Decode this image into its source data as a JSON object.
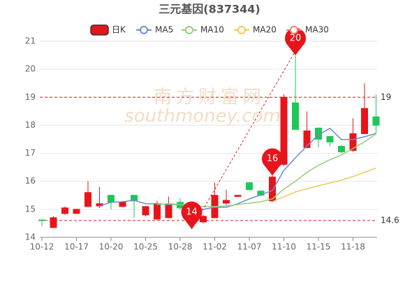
{
  "chart_data": {
    "type": "candlestick",
    "title": "三元基因(837344)",
    "watermark": [
      "南方财富网",
      "southmoney.com"
    ],
    "categories": [
      "10-12",
      null,
      null,
      "10-17",
      null,
      null,
      "10-20",
      null,
      null,
      "10-25",
      null,
      null,
      "10-28",
      null,
      null,
      "11-02",
      null,
      null,
      "11-07",
      null,
      null,
      "11-10",
      null,
      null,
      "11-15",
      null,
      null,
      "11-18",
      null,
      null
    ],
    "series": [
      {
        "name": "日K",
        "color": "#e8141b",
        "down_color": "#1ec75a",
        "open": [
          14.62,
          14.35,
          14.85,
          14.85,
          15.1,
          15.12,
          15.5,
          15.1,
          15.5,
          14.8,
          14.65,
          14.7,
          15.25,
          15.0,
          14.55,
          14.7,
          15.22,
          15.46,
          15.95,
          15.65,
          15.3,
          16.6,
          18.8,
          17.2,
          17.9,
          17.6,
          17.25,
          17.1,
          17.7,
          18.3
        ],
        "close": [
          14.6,
          14.7,
          15.05,
          15.0,
          15.6,
          15.2,
          15.25,
          15.25,
          15.3,
          15.1,
          15.2,
          15.2,
          15.05,
          14.75,
          14.75,
          15.5,
          15.32,
          15.5,
          15.7,
          15.5,
          16.15,
          19.0,
          17.85,
          17.8,
          17.5,
          17.4,
          17.05,
          17.7,
          18.6,
          18.0
        ],
        "high": [
          14.65,
          14.75,
          15.1,
          15.02,
          16.0,
          15.8,
          15.52,
          15.3,
          15.52,
          15.12,
          15.3,
          15.45,
          15.4,
          15.05,
          14.8,
          15.95,
          15.7,
          15.52,
          15.97,
          15.68,
          16.2,
          19.1,
          20.5,
          18.5,
          17.92,
          17.62,
          17.3,
          18.25,
          19.5,
          19.1
        ],
        "low": [
          14.4,
          14.33,
          14.8,
          14.85,
          15.08,
          15.05,
          15.0,
          15.08,
          14.7,
          14.75,
          14.62,
          14.68,
          14.98,
          14.3,
          14.5,
          14.68,
          15.15,
          15.45,
          15.68,
          15.48,
          15.25,
          16.55,
          17.85,
          17.18,
          17.2,
          17.25,
          17.0,
          17.05,
          17.68,
          17.7
        ]
      },
      {
        "name": "MA5",
        "color": "#6b8bd6",
        "values": [
          null,
          null,
          null,
          null,
          null,
          15.12,
          15.25,
          15.27,
          15.32,
          15.2,
          15.2,
          15.17,
          15.17,
          15.1,
          15.0,
          15.07,
          15.07,
          15.2,
          15.37,
          15.52,
          15.67,
          16.39,
          16.84,
          17.26,
          17.66,
          17.89,
          17.49,
          17.49,
          17.59,
          17.71
        ]
      },
      {
        "name": "MA10",
        "color": "#93d07a",
        "values": [
          null,
          null,
          null,
          null,
          null,
          null,
          null,
          null,
          null,
          null,
          15.17,
          15.2,
          15.17,
          15.12,
          15.1,
          15.1,
          15.12,
          15.17,
          15.22,
          15.27,
          15.37,
          15.72,
          16.0,
          16.32,
          16.57,
          16.77,
          16.94,
          17.17,
          17.41,
          17.69
        ]
      },
      {
        "name": "MA20",
        "color": "#f5c95a",
        "values": [
          null,
          null,
          null,
          null,
          null,
          null,
          null,
          null,
          null,
          null,
          null,
          null,
          null,
          null,
          null,
          null,
          null,
          null,
          null,
          null,
          15.27,
          15.45,
          15.62,
          15.74,
          15.84,
          15.94,
          16.04,
          16.17,
          16.32,
          16.47
        ]
      },
      {
        "name": "MA30",
        "color": "#e8827a",
        "values": [
          null,
          null,
          null,
          null,
          null,
          null,
          null,
          null,
          null,
          null,
          null,
          null,
          null,
          null,
          null,
          null,
          null,
          null,
          null,
          null,
          null,
          null,
          null,
          null,
          null,
          null,
          null,
          null,
          null,
          null
        ]
      }
    ],
    "ylim": [
      14,
      21
    ],
    "yticks": [
      14,
      15,
      16,
      17,
      18,
      19,
      20,
      21
    ],
    "grid": true,
    "hlines": [
      19,
      14.6
    ],
    "hline_color": "#d42020",
    "pins": [
      {
        "value": 14,
        "index": 13,
        "at": "low"
      },
      {
        "value": 16,
        "index": 20,
        "at": "high"
      },
      {
        "value": 20,
        "index": 22,
        "at": "high"
      }
    ],
    "pin_color": "#e8141b"
  }
}
